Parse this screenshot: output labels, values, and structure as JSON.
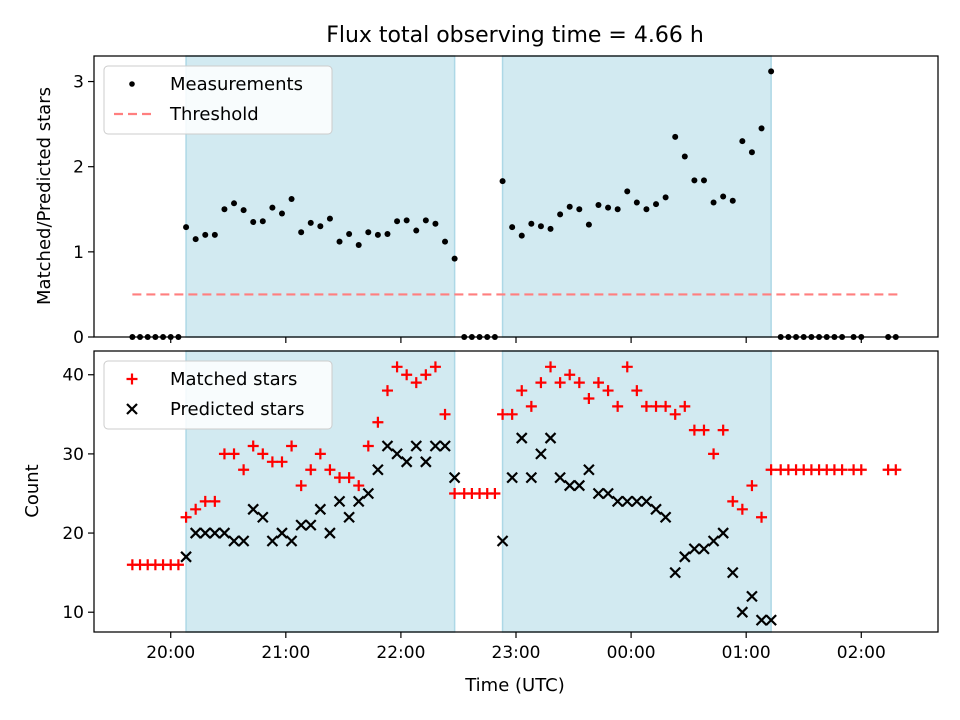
{
  "figure": {
    "title": "Flux total observing time = 4.66 h",
    "xlabel": "Time (UTC)",
    "x_ticks": [
      "20:00",
      "21:00",
      "22:00",
      "23:00",
      "00:00",
      "01:00",
      "02:00"
    ]
  },
  "colors": {
    "measurements": "#000000",
    "threshold": "#ff7f7f",
    "matched": "#ff0000",
    "predicted": "#000000",
    "span": "#add8e6"
  },
  "chart_data": [
    {
      "type": "scatter",
      "ylabel": "Matched/Predicted stars",
      "ylim": [
        0,
        3.3
      ],
      "xlim": [
        "19:20",
        "02:40"
      ],
      "y_ticks": [
        0,
        1,
        2,
        3
      ],
      "legend_position": "top-left",
      "legend": [
        "Measurements",
        "Threshold"
      ],
      "shaded_intervals": [
        [
          "20:08",
          "22:28"
        ],
        [
          "22:53",
          "01:13"
        ]
      ],
      "threshold": {
        "name": "Threshold",
        "value": 0.5,
        "x_range": [
          "19:40",
          "02:20"
        ],
        "style": "dashed"
      },
      "series": [
        {
          "name": "Measurements",
          "marker": "dot",
          "x": [
            "19:40",
            "19:44",
            "19:48",
            "19:52",
            "19:56",
            "20:00",
            "20:04",
            "20:08",
            "20:13",
            "20:18",
            "20:23",
            "20:28",
            "20:33",
            "20:38",
            "20:43",
            "20:48",
            "20:53",
            "20:58",
            "21:03",
            "21:08",
            "21:13",
            "21:18",
            "21:23",
            "21:28",
            "21:33",
            "21:38",
            "21:43",
            "21:48",
            "21:53",
            "21:58",
            "22:03",
            "22:08",
            "22:13",
            "22:18",
            "22:23",
            "22:28",
            "22:33",
            "22:37",
            "22:41",
            "22:45",
            "22:49",
            "22:53",
            "22:58",
            "23:03",
            "23:08",
            "23:13",
            "23:18",
            "23:23",
            "23:28",
            "23:33",
            "23:38",
            "23:43",
            "23:48",
            "23:53",
            "23:58",
            "00:03",
            "00:08",
            "00:13",
            "00:18",
            "00:23",
            "00:28",
            "00:33",
            "00:38",
            "00:43",
            "00:48",
            "00:53",
            "00:58",
            "01:03",
            "01:08",
            "01:13",
            "01:18",
            "01:22",
            "01:26",
            "01:30",
            "01:34",
            "01:38",
            "01:42",
            "01:46",
            "01:50",
            "01:56",
            "02:00",
            "02:14",
            "02:18"
          ],
          "y": [
            0,
            0,
            0,
            0,
            0,
            0,
            0,
            1.29,
            1.15,
            1.2,
            1.2,
            1.5,
            1.57,
            1.49,
            1.35,
            1.36,
            1.52,
            1.45,
            1.62,
            1.23,
            1.34,
            1.3,
            1.39,
            1.12,
            1.21,
            1.08,
            1.23,
            1.2,
            1.21,
            1.36,
            1.37,
            1.25,
            1.37,
            1.33,
            1.12,
            0.92,
            0,
            0,
            0,
            0,
            0,
            1.83,
            1.29,
            1.19,
            1.33,
            1.3,
            1.27,
            1.44,
            1.53,
            1.5,
            1.32,
            1.55,
            1.52,
            1.5,
            1.71,
            1.58,
            1.5,
            1.56,
            1.64,
            2.35,
            2.12,
            1.84,
            1.84,
            1.58,
            1.65,
            1.6,
            2.3,
            2.17,
            2.45,
            3.12,
            0,
            0,
            0,
            0,
            0,
            0,
            0,
            0,
            0,
            0,
            0,
            0,
            0
          ]
        }
      ]
    },
    {
      "type": "scatter",
      "ylabel": "Count",
      "ylim": [
        7.5,
        43
      ],
      "xlim": [
        "19:20",
        "02:40"
      ],
      "y_ticks": [
        10,
        20,
        30,
        40
      ],
      "legend_position": "top-left",
      "legend": [
        "Matched stars",
        "Predicted stars"
      ],
      "shaded_intervals": [
        [
          "20:08",
          "22:28"
        ],
        [
          "22:53",
          "01:13"
        ]
      ],
      "series": [
        {
          "name": "Matched stars",
          "marker": "plus",
          "x": [
            "19:40",
            "19:44",
            "19:48",
            "19:52",
            "19:56",
            "20:00",
            "20:04",
            "20:08",
            "20:13",
            "20:18",
            "20:23",
            "20:28",
            "20:33",
            "20:38",
            "20:43",
            "20:48",
            "20:53",
            "20:58",
            "21:03",
            "21:08",
            "21:13",
            "21:18",
            "21:23",
            "21:28",
            "21:33",
            "21:38",
            "21:43",
            "21:48",
            "21:53",
            "21:58",
            "22:03",
            "22:08",
            "22:13",
            "22:18",
            "22:23",
            "22:28",
            "22:33",
            "22:37",
            "22:41",
            "22:45",
            "22:49",
            "22:53",
            "22:58",
            "23:03",
            "23:08",
            "23:13",
            "23:18",
            "23:23",
            "23:28",
            "23:33",
            "23:38",
            "23:43",
            "23:48",
            "23:53",
            "23:58",
            "00:03",
            "00:08",
            "00:13",
            "00:18",
            "00:23",
            "00:28",
            "00:33",
            "00:38",
            "00:43",
            "00:48",
            "00:53",
            "00:58",
            "01:03",
            "01:08",
            "01:13",
            "01:18",
            "01:22",
            "01:26",
            "01:30",
            "01:34",
            "01:38",
            "01:42",
            "01:46",
            "01:50",
            "01:56",
            "02:00",
            "02:14",
            "02:18"
          ],
          "y": [
            16,
            16,
            16,
            16,
            16,
            16,
            16,
            22,
            23,
            24,
            24,
            30,
            30,
            28,
            31,
            30,
            29,
            29,
            31,
            26,
            28,
            30,
            28,
            27,
            27,
            26,
            31,
            34,
            38,
            41,
            40,
            39,
            40,
            41,
            35,
            25,
            25,
            25,
            25,
            25,
            25,
            35,
            35,
            38,
            36,
            39,
            41,
            39,
            40,
            39,
            37,
            39,
            38,
            36,
            41,
            38,
            36,
            36,
            36,
            35,
            36,
            33,
            33,
            30,
            33,
            24,
            23,
            26,
            22,
            28,
            28,
            28,
            28,
            28,
            28,
            28,
            28,
            28,
            28,
            28,
            28,
            28,
            28
          ]
        },
        {
          "name": "Predicted stars",
          "marker": "x",
          "x": [
            "20:08",
            "20:13",
            "20:18",
            "20:23",
            "20:28",
            "20:33",
            "20:38",
            "20:43",
            "20:48",
            "20:53",
            "20:58",
            "21:03",
            "21:08",
            "21:13",
            "21:18",
            "21:23",
            "21:28",
            "21:33",
            "21:38",
            "21:43",
            "21:48",
            "21:53",
            "21:58",
            "22:03",
            "22:08",
            "22:13",
            "22:18",
            "22:23",
            "22:28",
            "22:53",
            "22:58",
            "23:03",
            "23:08",
            "23:13",
            "23:18",
            "23:23",
            "23:28",
            "23:33",
            "23:38",
            "23:43",
            "23:48",
            "23:53",
            "23:58",
            "00:03",
            "00:08",
            "00:13",
            "00:18",
            "00:23",
            "00:28",
            "00:33",
            "00:38",
            "00:43",
            "00:48",
            "00:53",
            "00:58",
            "01:03",
            "01:08",
            "01:13"
          ],
          "y": [
            17,
            20,
            20,
            20,
            20,
            19,
            19,
            23,
            22,
            19,
            20,
            19,
            21,
            21,
            23,
            20,
            24,
            22,
            24,
            25,
            28,
            31,
            30,
            29,
            31,
            29,
            31,
            31,
            27,
            19,
            27,
            32,
            27,
            30,
            32,
            27,
            26,
            26,
            28,
            25,
            25,
            24,
            24,
            24,
            24,
            23,
            22,
            15,
            17,
            18,
            18,
            19,
            20,
            15,
            10,
            12,
            9,
            9
          ]
        }
      ]
    }
  ]
}
